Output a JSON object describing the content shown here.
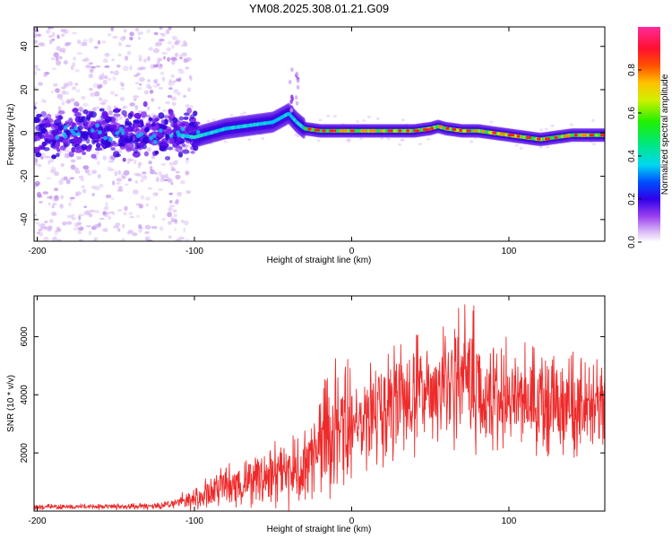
{
  "chart_data": [
    {
      "type": "heatmap",
      "title": "YM08.2025.308.01.21.G09",
      "xlabel": "Height of straight line (km)",
      "ylabel": "Frequency (Hz)",
      "xlim": [
        -202,
        161
      ],
      "ylim": [
        -50,
        49
      ],
      "xticks": [
        -200,
        -100,
        0,
        100
      ],
      "yticks": [
        -40,
        -20,
        0,
        20,
        40
      ],
      "colorbar": {
        "label": "Normalized spectral amplitude",
        "range": [
          0,
          1
        ],
        "ticks": [
          0.0,
          0.2,
          0.4,
          0.6,
          0.8
        ]
      },
      "ridge": {
        "description": "dominant frequency track",
        "x": [
          -200,
          -180,
          -160,
          -140,
          -120,
          -100,
          -90,
          -80,
          -70,
          -60,
          -50,
          -40,
          -35,
          -30,
          -20,
          0,
          20,
          40,
          50,
          55,
          60,
          70,
          80,
          90,
          100,
          110,
          120,
          130,
          140,
          150,
          160
        ],
        "y": [
          0,
          0,
          0,
          0,
          0,
          -2,
          0,
          2,
          3,
          4,
          5,
          9,
          5,
          2,
          1,
          1,
          1,
          1,
          2,
          3,
          2,
          1,
          1,
          0,
          -1,
          -2,
          -3,
          -2,
          -1,
          -1,
          -1
        ]
      },
      "colors": [
        "#ffffff",
        "#c58bf0",
        "#7a1cf0",
        "#2a00e6",
        "#00e5f0",
        "#00e030",
        "#e5e500",
        "#ff8a00",
        "#ff2020",
        "#ff3a9a"
      ]
    },
    {
      "type": "line",
      "title": "",
      "xlabel": "Height of straight line (km)",
      "ylabel": "SNR (10 * v/v)",
      "xlim": [
        -202,
        161
      ],
      "ylim": [
        0,
        7400
      ],
      "xticks": [
        -200,
        -100,
        0,
        100
      ],
      "yticks": [
        2000,
        4000,
        6000
      ],
      "series": [
        {
          "name": "SNR",
          "color": "#ee2a2a",
          "envelope_x": [
            -200,
            -150,
            -120,
            -100,
            -80,
            -60,
            -40,
            -30,
            -20,
            -10,
            0,
            10,
            20,
            30,
            40,
            60,
            75,
            80,
            90,
            100,
            120,
            140,
            160
          ],
          "envelope_y": [
            150,
            150,
            200,
            400,
            900,
            1100,
            1300,
            1500,
            2300,
            2800,
            3000,
            3300,
            3600,
            3900,
            4000,
            4300,
            4400,
            4200,
            4000,
            3900,
            3700,
            3600,
            3600
          ]
        }
      ]
    }
  ]
}
